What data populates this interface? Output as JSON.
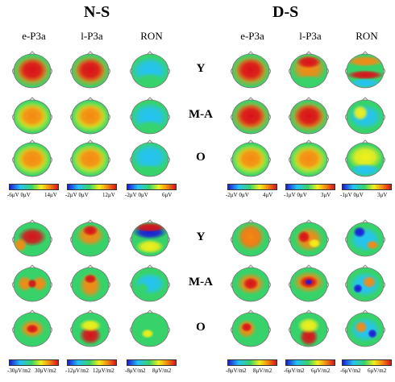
{
  "panels": [
    {
      "title": "N-S",
      "topColumns": [
        "e-P3a",
        "l-P3a",
        "RON"
      ],
      "topScales": [
        [
          "-6μV",
          "0μV",
          "14μV"
        ],
        [
          "-2μV",
          "0μV",
          "12μV"
        ],
        [
          "-2μV",
          "0μV",
          "6μV"
        ]
      ],
      "bottomScales": [
        [
          "-30μV/m2",
          "30μV/m2"
        ],
        [
          "-12μV/m2",
          "12μV/m2"
        ],
        [
          "-8μV/m2",
          "8μV/m2"
        ]
      ]
    },
    {
      "title": "D-S",
      "topColumns": [
        "e-P3a",
        "l-P3a",
        "RON"
      ],
      "topScales": [
        [
          "-2μV",
          "0μV",
          "4μV"
        ],
        [
          "-1μV",
          "0μV",
          "3μV"
        ],
        [
          "-1μV",
          "0μV",
          "3μV"
        ]
      ],
      "bottomScales": [
        [
          "-8μV/m2",
          "8μV/m2"
        ],
        [
          "-6μV/m2",
          "6μV/m2"
        ],
        [
          "-6μV/m2",
          "6μV/m2"
        ]
      ]
    }
  ],
  "groups": [
    "Y",
    "M-A",
    "O"
  ],
  "colors": {
    "red": "#d8121a",
    "orange": "#f48a14",
    "yellow": "#f2f01a",
    "green": "#37d36a",
    "cyan": "#25c3f5",
    "blue": "#1b1bd6"
  }
}
